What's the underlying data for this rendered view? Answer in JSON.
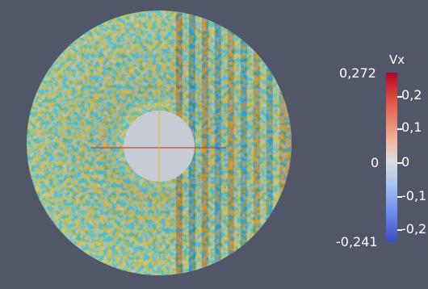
{
  "colorbar": {
    "title": "Vx",
    "max_label": "0,272",
    "min_label": "-0,241",
    "ticks": [
      "0,2",
      "0,1",
      "0",
      "-0,1",
      "-0,2"
    ],
    "left_zero_label": "0",
    "colors": {
      "high": "#b40426",
      "mid": "#dddcdc",
      "low": "#3a4cc0"
    }
  },
  "background_color": "#525669"
}
